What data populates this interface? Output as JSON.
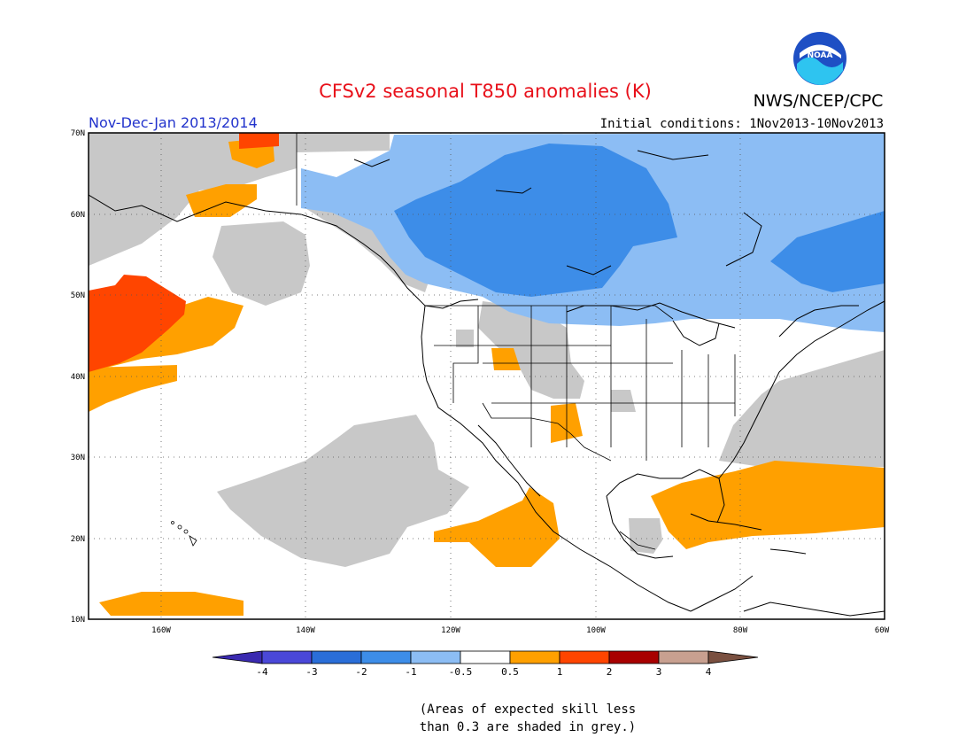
{
  "title": "CFSv2 seasonal T850 anomalies (K)",
  "season_label": "Nov-Dec-Jan 2013/2014",
  "agency": "NWS/NCEP/CPC",
  "logo_text": "NOAA",
  "initial_conditions": "Initial conditions: 1Nov2013-10Nov2013",
  "footnote_line1": "(Areas of expected skill less",
  "footnote_line2": "than 0.3 are shaded in grey.)",
  "colors": {
    "title": "#e8101a",
    "season_label": "#2233cc",
    "grey_skill": "#c8c8c8",
    "light_blue": "#8cbdf4",
    "mid_blue": "#3d8de8",
    "orange": "#ffa000",
    "red_orange": "#ff4500"
  },
  "map": {
    "lon_range": [
      -170,
      -60
    ],
    "lat_range": [
      10,
      70
    ],
    "lon_ticks": [
      "160W",
      "140W",
      "120W",
      "100W",
      "80W",
      "60W"
    ],
    "lat_ticks": [
      "10N",
      "20N",
      "30N",
      "40N",
      "50N",
      "60N",
      "70N"
    ]
  },
  "legend": {
    "tick_labels": [
      "-4",
      "-3",
      "-2",
      "-1",
      "-0.5",
      "0.5",
      "1",
      "2",
      "3",
      "4"
    ],
    "colors": [
      "#3a2ab0",
      "#4a48d8",
      "#2a6ed8",
      "#3d8de8",
      "#8cbdf4",
      "#ffffff",
      "#ffa000",
      "#ff4500",
      "#a80000",
      "#c8a090",
      "#7a5040"
    ]
  }
}
